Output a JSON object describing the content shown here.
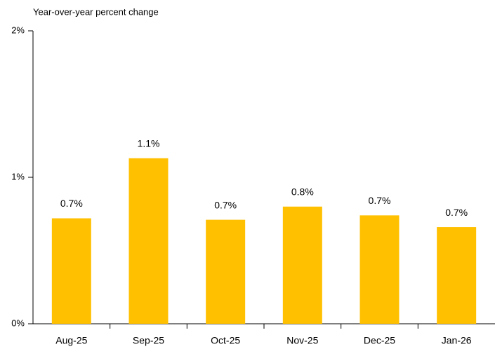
{
  "chart_data": {
    "type": "bar",
    "title": "Year-over-year percent change",
    "categories": [
      "Aug-25",
      "Sep-25",
      "Oct-25",
      "Nov-25",
      "Dec-25",
      "Jan-26"
    ],
    "values": [
      0.72,
      1.13,
      0.71,
      0.8,
      0.74,
      0.66
    ],
    "value_labels": [
      "0.7%",
      "1.1%",
      "0.7%",
      "0.8%",
      "0.7%",
      "0.7%"
    ],
    "color": "#ffc000",
    "ylim": [
      0,
      2
    ],
    "yticks": [
      {
        "value": 0,
        "label": "0%"
      },
      {
        "value": 1,
        "label": "1%"
      },
      {
        "value": 2,
        "label": "2%"
      }
    ],
    "grid": false
  }
}
